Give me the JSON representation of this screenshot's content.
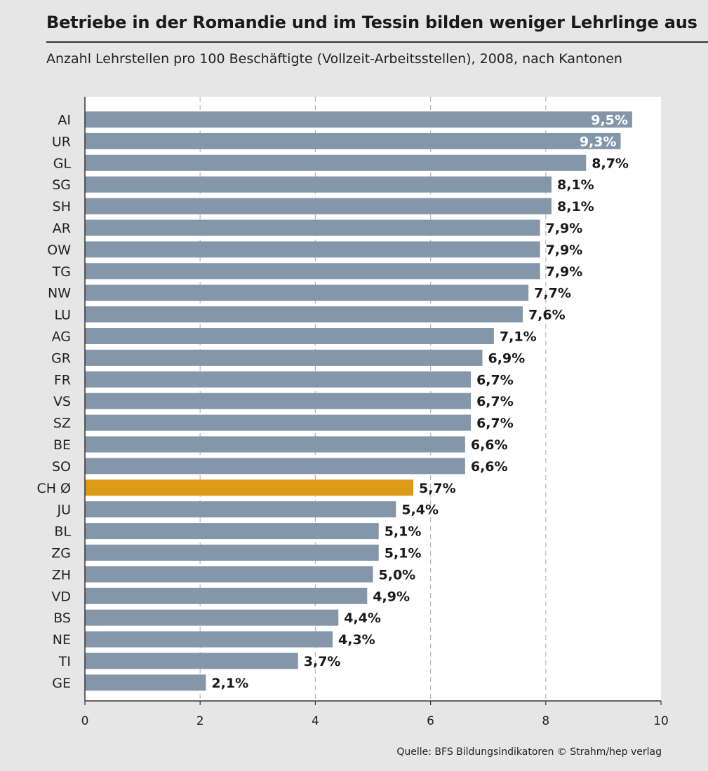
{
  "chart_data": {
    "type": "bar",
    "orientation": "horizontal",
    "title": "Betriebe in der Romandie und im Tessin bilden weniger Lehrlinge aus",
    "subtitle": "Anzahl Lehrstellen pro 100 Beschäftigte (Vollzeit-Arbeitsstellen), 2008, nach Kantonen",
    "categories": [
      "AI",
      "UR",
      "GL",
      "SG",
      "SH",
      "AR",
      "OW",
      "TG",
      "NW",
      "LU",
      "AG",
      "GR",
      "FR",
      "VS",
      "SZ",
      "BE",
      "SO",
      "CH Ø",
      "JU",
      "BL",
      "ZG",
      "ZH",
      "VD",
      "BS",
      "NE",
      "TI",
      "GE"
    ],
    "values": [
      9.5,
      9.3,
      8.7,
      8.1,
      8.1,
      7.9,
      7.9,
      7.9,
      7.7,
      7.6,
      7.1,
      6.9,
      6.7,
      6.7,
      6.7,
      6.6,
      6.6,
      5.7,
      5.4,
      5.1,
      5.1,
      5.0,
      4.9,
      4.4,
      4.3,
      3.7,
      2.1
    ],
    "value_labels": [
      "9,5%",
      "9,3%",
      "8,7%",
      "8,1%",
      "8,1%",
      "7,9%",
      "7,9%",
      "7,9%",
      "7,7%",
      "7,6%",
      "7,1%",
      "6,9%",
      "6,7%",
      "6,7%",
      "6,7%",
      "6,6%",
      "6,6%",
      "5,7%",
      "5,4%",
      "5,1%",
      "5,1%",
      "5,0%",
      "4,9%",
      "4,4%",
      "4,3%",
      "3,7%",
      "2,1%"
    ],
    "highlight_category": "CH Ø",
    "xlim": [
      0,
      10
    ],
    "x_ticks": [
      "0",
      "2",
      "4",
      "6",
      "8",
      "10"
    ],
    "grid": "vertical dashed",
    "bar_color": "#8496a9",
    "highlight_color": "#dd9a16",
    "background_color": "#e6e6e6",
    "plot_background_color": "#ffffff"
  },
  "source": "Quelle: BFS Bildungsindikatoren  © Strahm/hep verlag"
}
